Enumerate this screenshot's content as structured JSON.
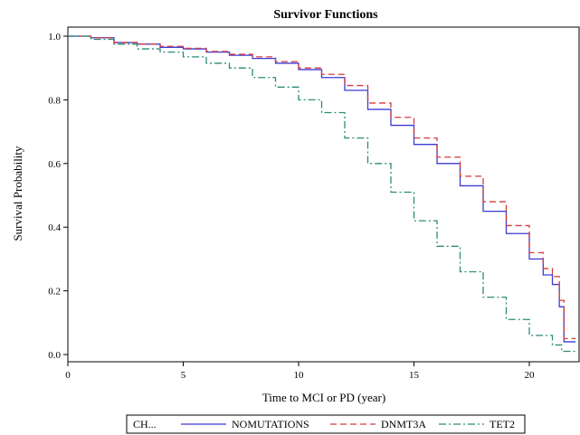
{
  "chart_data": {
    "type": "line",
    "title": "Survivor Functions",
    "xlabel": "Time to MCI or PD (year)",
    "ylabel": "Survival Probability",
    "xlim": [
      0,
      22
    ],
    "ylim": [
      0,
      1
    ],
    "xticks": [
      "0",
      "5",
      "10",
      "15",
      "20"
    ],
    "yticks": [
      "0.0",
      "0.2",
      "0.4",
      "0.6",
      "0.8",
      "1.0"
    ],
    "grid": false,
    "legend": {
      "title": "CH...",
      "placement": "bottom"
    },
    "series": [
      {
        "name": "NOMUTATIONS",
        "color": "#3b3bd6",
        "dash": "solid",
        "x": [
          0,
          1,
          2,
          3,
          4,
          5,
          6,
          7,
          8,
          9,
          10,
          11,
          12,
          13,
          14,
          15,
          16,
          17,
          18,
          19,
          20,
          20.6,
          21,
          21.3,
          21.5,
          22
        ],
        "y": [
          1.0,
          0.995,
          0.98,
          0.975,
          0.965,
          0.96,
          0.95,
          0.94,
          0.93,
          0.915,
          0.895,
          0.87,
          0.83,
          0.77,
          0.72,
          0.66,
          0.6,
          0.53,
          0.45,
          0.38,
          0.3,
          0.25,
          0.22,
          0.15,
          0.04,
          0.04
        ]
      },
      {
        "name": "DNMT3A",
        "color": "#d63b3b",
        "dash": "dash",
        "x": [
          0,
          1,
          2,
          3,
          4,
          5,
          6,
          7,
          8,
          9,
          10,
          11,
          12,
          13,
          14,
          15,
          16,
          17,
          18,
          19,
          20,
          20.6,
          21,
          21.3,
          21.5,
          22
        ],
        "y": [
          1.0,
          0.995,
          0.98,
          0.975,
          0.968,
          0.962,
          0.952,
          0.943,
          0.935,
          0.92,
          0.9,
          0.88,
          0.845,
          0.79,
          0.745,
          0.68,
          0.62,
          0.56,
          0.48,
          0.405,
          0.32,
          0.27,
          0.245,
          0.17,
          0.05,
          0.05
        ]
      },
      {
        "name": "TET2",
        "color": "#2e8b7a",
        "dash": "dashdot",
        "x": [
          0,
          1,
          2,
          3,
          4,
          5,
          6,
          7,
          8,
          9,
          10,
          11,
          12,
          13,
          14,
          15,
          16,
          17,
          18,
          19,
          20,
          21,
          21.4,
          22
        ],
        "y": [
          1.0,
          0.99,
          0.975,
          0.96,
          0.95,
          0.935,
          0.915,
          0.9,
          0.87,
          0.84,
          0.8,
          0.76,
          0.68,
          0.6,
          0.51,
          0.42,
          0.34,
          0.26,
          0.18,
          0.11,
          0.06,
          0.03,
          0.01,
          0.01
        ]
      }
    ]
  }
}
